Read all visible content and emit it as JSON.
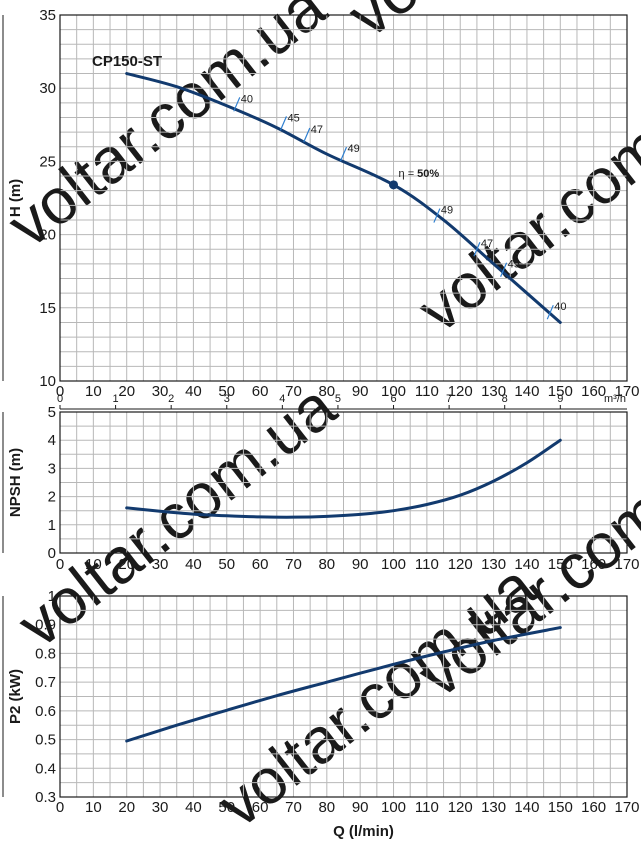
{
  "chart_data": [
    {
      "type": "line",
      "name": "head",
      "ylabel": "H (m)",
      "xlim": [
        0,
        170
      ],
      "ylim": [
        10,
        35
      ],
      "x_ticks": [
        0,
        10,
        20,
        30,
        40,
        50,
        60,
        70,
        80,
        90,
        100,
        110,
        120,
        130,
        140,
        150,
        160,
        170
      ],
      "y_ticks": [
        10,
        15,
        20,
        25,
        30,
        35
      ],
      "grid": true,
      "series": [
        {
          "name": "CP150-ST",
          "x": [
            20,
            35,
            50,
            65,
            80,
            100,
            115,
            130,
            150
          ],
          "y": [
            31,
            30.1,
            28.8,
            27.3,
            25.5,
            23.4,
            21,
            18,
            14
          ]
        }
      ],
      "efficiency_marks": [
        {
          "x": 53,
          "y": 28.9,
          "label": "40"
        },
        {
          "x": 67,
          "y": 27.6,
          "label": "45"
        },
        {
          "x": 74,
          "y": 26.8,
          "label": "47"
        },
        {
          "x": 85,
          "y": 25.5,
          "label": "49"
        },
        {
          "x": 113,
          "y": 21.3,
          "label": "49"
        },
        {
          "x": 125,
          "y": 19.0,
          "label": "47"
        },
        {
          "x": 133,
          "y": 17.6,
          "label": "45"
        },
        {
          "x": 147,
          "y": 14.7,
          "label": "40"
        }
      ],
      "best_efficiency_point": {
        "x": 100,
        "y": 23.4,
        "label_prefix": "η = ",
        "label_value": "50%"
      },
      "secondary_x_axis": {
        "unit": "m³/h",
        "ticks": [
          0,
          1,
          2,
          3,
          4,
          5,
          6,
          7,
          8,
          9
        ]
      }
    },
    {
      "type": "line",
      "name": "npsh",
      "ylabel": "NPSH (m)",
      "xlim": [
        0,
        170
      ],
      "ylim": [
        0,
        5
      ],
      "x_ticks": [
        0,
        10,
        20,
        30,
        40,
        50,
        60,
        70,
        80,
        90,
        100,
        110,
        120,
        130,
        140,
        150,
        160,
        170
      ],
      "y_ticks": [
        0,
        1,
        2,
        3,
        4,
        5
      ],
      "grid": true,
      "series": [
        {
          "x": [
            20,
            30,
            40,
            50,
            60,
            70,
            80,
            90,
            100,
            110,
            120,
            130,
            140,
            150
          ],
          "y": [
            1.6,
            1.48,
            1.38,
            1.32,
            1.28,
            1.27,
            1.3,
            1.37,
            1.5,
            1.72,
            2.05,
            2.55,
            3.2,
            4.0
          ]
        }
      ]
    },
    {
      "type": "line",
      "name": "power",
      "ylabel": "P2 (kW)",
      "xlabel": "Q (l/min)",
      "xlim": [
        0,
        170
      ],
      "ylim": [
        0.3,
        1
      ],
      "x_ticks": [
        0,
        10,
        20,
        30,
        40,
        50,
        60,
        70,
        80,
        90,
        100,
        110,
        120,
        130,
        140,
        150,
        160,
        170
      ],
      "y_ticks": [
        0.3,
        0.4,
        0.5,
        0.6,
        0.7,
        0.8,
        0.9,
        1
      ],
      "grid": true,
      "series": [
        {
          "x": [
            20,
            35,
            50,
            65,
            80,
            100,
            115,
            130,
            150
          ],
          "y": [
            0.495,
            0.55,
            0.602,
            0.653,
            0.7,
            0.762,
            0.805,
            0.845,
            0.89
          ]
        }
      ]
    }
  ],
  "watermark": "voltar.com.ua"
}
